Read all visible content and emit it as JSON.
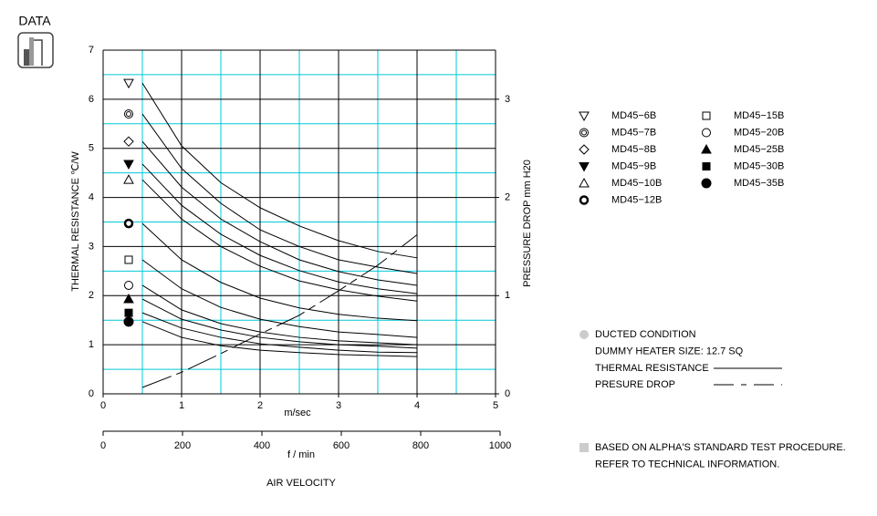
{
  "page": {
    "header": "DATA",
    "notes": [
      "DUCTED CONDITION",
      "DUMMY HEATER SIZE: 12.7 SQ",
      "THERMAL RESISTANCE"
    ],
    "footnotes": [
      "BASED ON ALPHA'S STANDARD TEST PROCEDURE.",
      "REFER TO TECHNICAL INFORMATION."
    ]
  },
  "chart_data": {
    "type": "line",
    "x_label": "m/sec",
    "x2_label": "f / min",
    "x_title": "AIR VELOCITY",
    "y_label": "THERMAL RESISTANCE  ℃/W",
    "y2_label": "PRESSURE DROP   mm H20",
    "xlim": [
      0,
      5
    ],
    "xticks": [
      0,
      1,
      2,
      3,
      4,
      5
    ],
    "xminor": [
      0.5,
      1.5,
      2.5,
      3.5,
      4.5
    ],
    "x2lim": [
      0,
      1000
    ],
    "x2ticks": [
      0,
      200,
      400,
      600,
      800,
      1000
    ],
    "ylim": [
      0,
      7
    ],
    "yticks": [
      0,
      1,
      2,
      3,
      4,
      5,
      6,
      7
    ],
    "yminor": [
      0.5,
      1.5,
      2.5,
      3.5,
      4.5,
      5.5,
      6.5
    ],
    "y2lim": [
      0,
      3.5
    ],
    "y2ticks": [
      0,
      1,
      2,
      3
    ],
    "grid": true,
    "grid_color": "#000000",
    "minor_grid_color": "#00c8d8",
    "x": [
      0.5,
      1,
      1.5,
      2,
      2.5,
      3,
      3.5,
      4
    ],
    "series": [
      {
        "name": "MD45−6B",
        "marker": "triangle-down-open",
        "color": "#000000",
        "values": [
          6.33,
          5.05,
          4.3,
          3.79,
          3.42,
          3.12,
          2.9,
          2.77
        ]
      },
      {
        "name": "MD45−7B",
        "marker": "double-circle",
        "color": "#000000",
        "values": [
          5.7,
          4.59,
          3.88,
          3.34,
          3.0,
          2.73,
          2.58,
          2.45
        ]
      },
      {
        "name": "MD45−8B",
        "marker": "diamond-open",
        "color": "#000000",
        "values": [
          5.14,
          4.21,
          3.56,
          3.1,
          2.73,
          2.49,
          2.32,
          2.21
        ]
      },
      {
        "name": "MD45−9B",
        "marker": "triangle-down-filled",
        "color": "#000000",
        "values": [
          4.68,
          3.84,
          3.25,
          2.82,
          2.51,
          2.28,
          2.14,
          2.04
        ]
      },
      {
        "name": "MD45−10B",
        "marker": "triangle-up-open",
        "color": "#000000",
        "values": [
          4.36,
          3.56,
          3.0,
          2.6,
          2.3,
          2.12,
          1.99,
          1.89
        ]
      },
      {
        "name": "MD45−12B",
        "marker": "ring-bold",
        "color": "#000000",
        "values": [
          3.47,
          2.73,
          2.27,
          1.95,
          1.75,
          1.62,
          1.54,
          1.49
        ]
      },
      {
        "name": "MD45−15B",
        "marker": "square-open",
        "color": "#000000",
        "values": [
          2.73,
          2.14,
          1.76,
          1.52,
          1.37,
          1.26,
          1.21,
          1.15
        ]
      },
      {
        "name": "MD45−20B",
        "marker": "circle-open",
        "color": "#000000",
        "values": [
          2.21,
          1.71,
          1.43,
          1.26,
          1.15,
          1.08,
          1.04,
          1.0
        ]
      },
      {
        "name": "MD45−25B",
        "marker": "triangle-up-filled",
        "color": "#000000",
        "values": [
          1.93,
          1.52,
          1.3,
          1.15,
          1.06,
          1.0,
          0.97,
          0.93
        ]
      },
      {
        "name": "MD45−30B",
        "marker": "square-filled",
        "color": "#000000",
        "values": [
          1.65,
          1.34,
          1.15,
          1.02,
          0.95,
          0.89,
          0.85,
          0.84
        ]
      },
      {
        "name": "MD45−35B",
        "marker": "circle-filled",
        "color": "#000000",
        "values": [
          1.47,
          1.15,
          0.98,
          0.89,
          0.84,
          0.8,
          0.78,
          0.76
        ]
      },
      {
        "name": "PRESURE DROP",
        "axis": "y2",
        "dash": "dashdot",
        "color": "#000000",
        "values": [
          0.065,
          0.22,
          0.41,
          0.61,
          0.8,
          1.05,
          1.31,
          1.62
        ]
      }
    ]
  }
}
